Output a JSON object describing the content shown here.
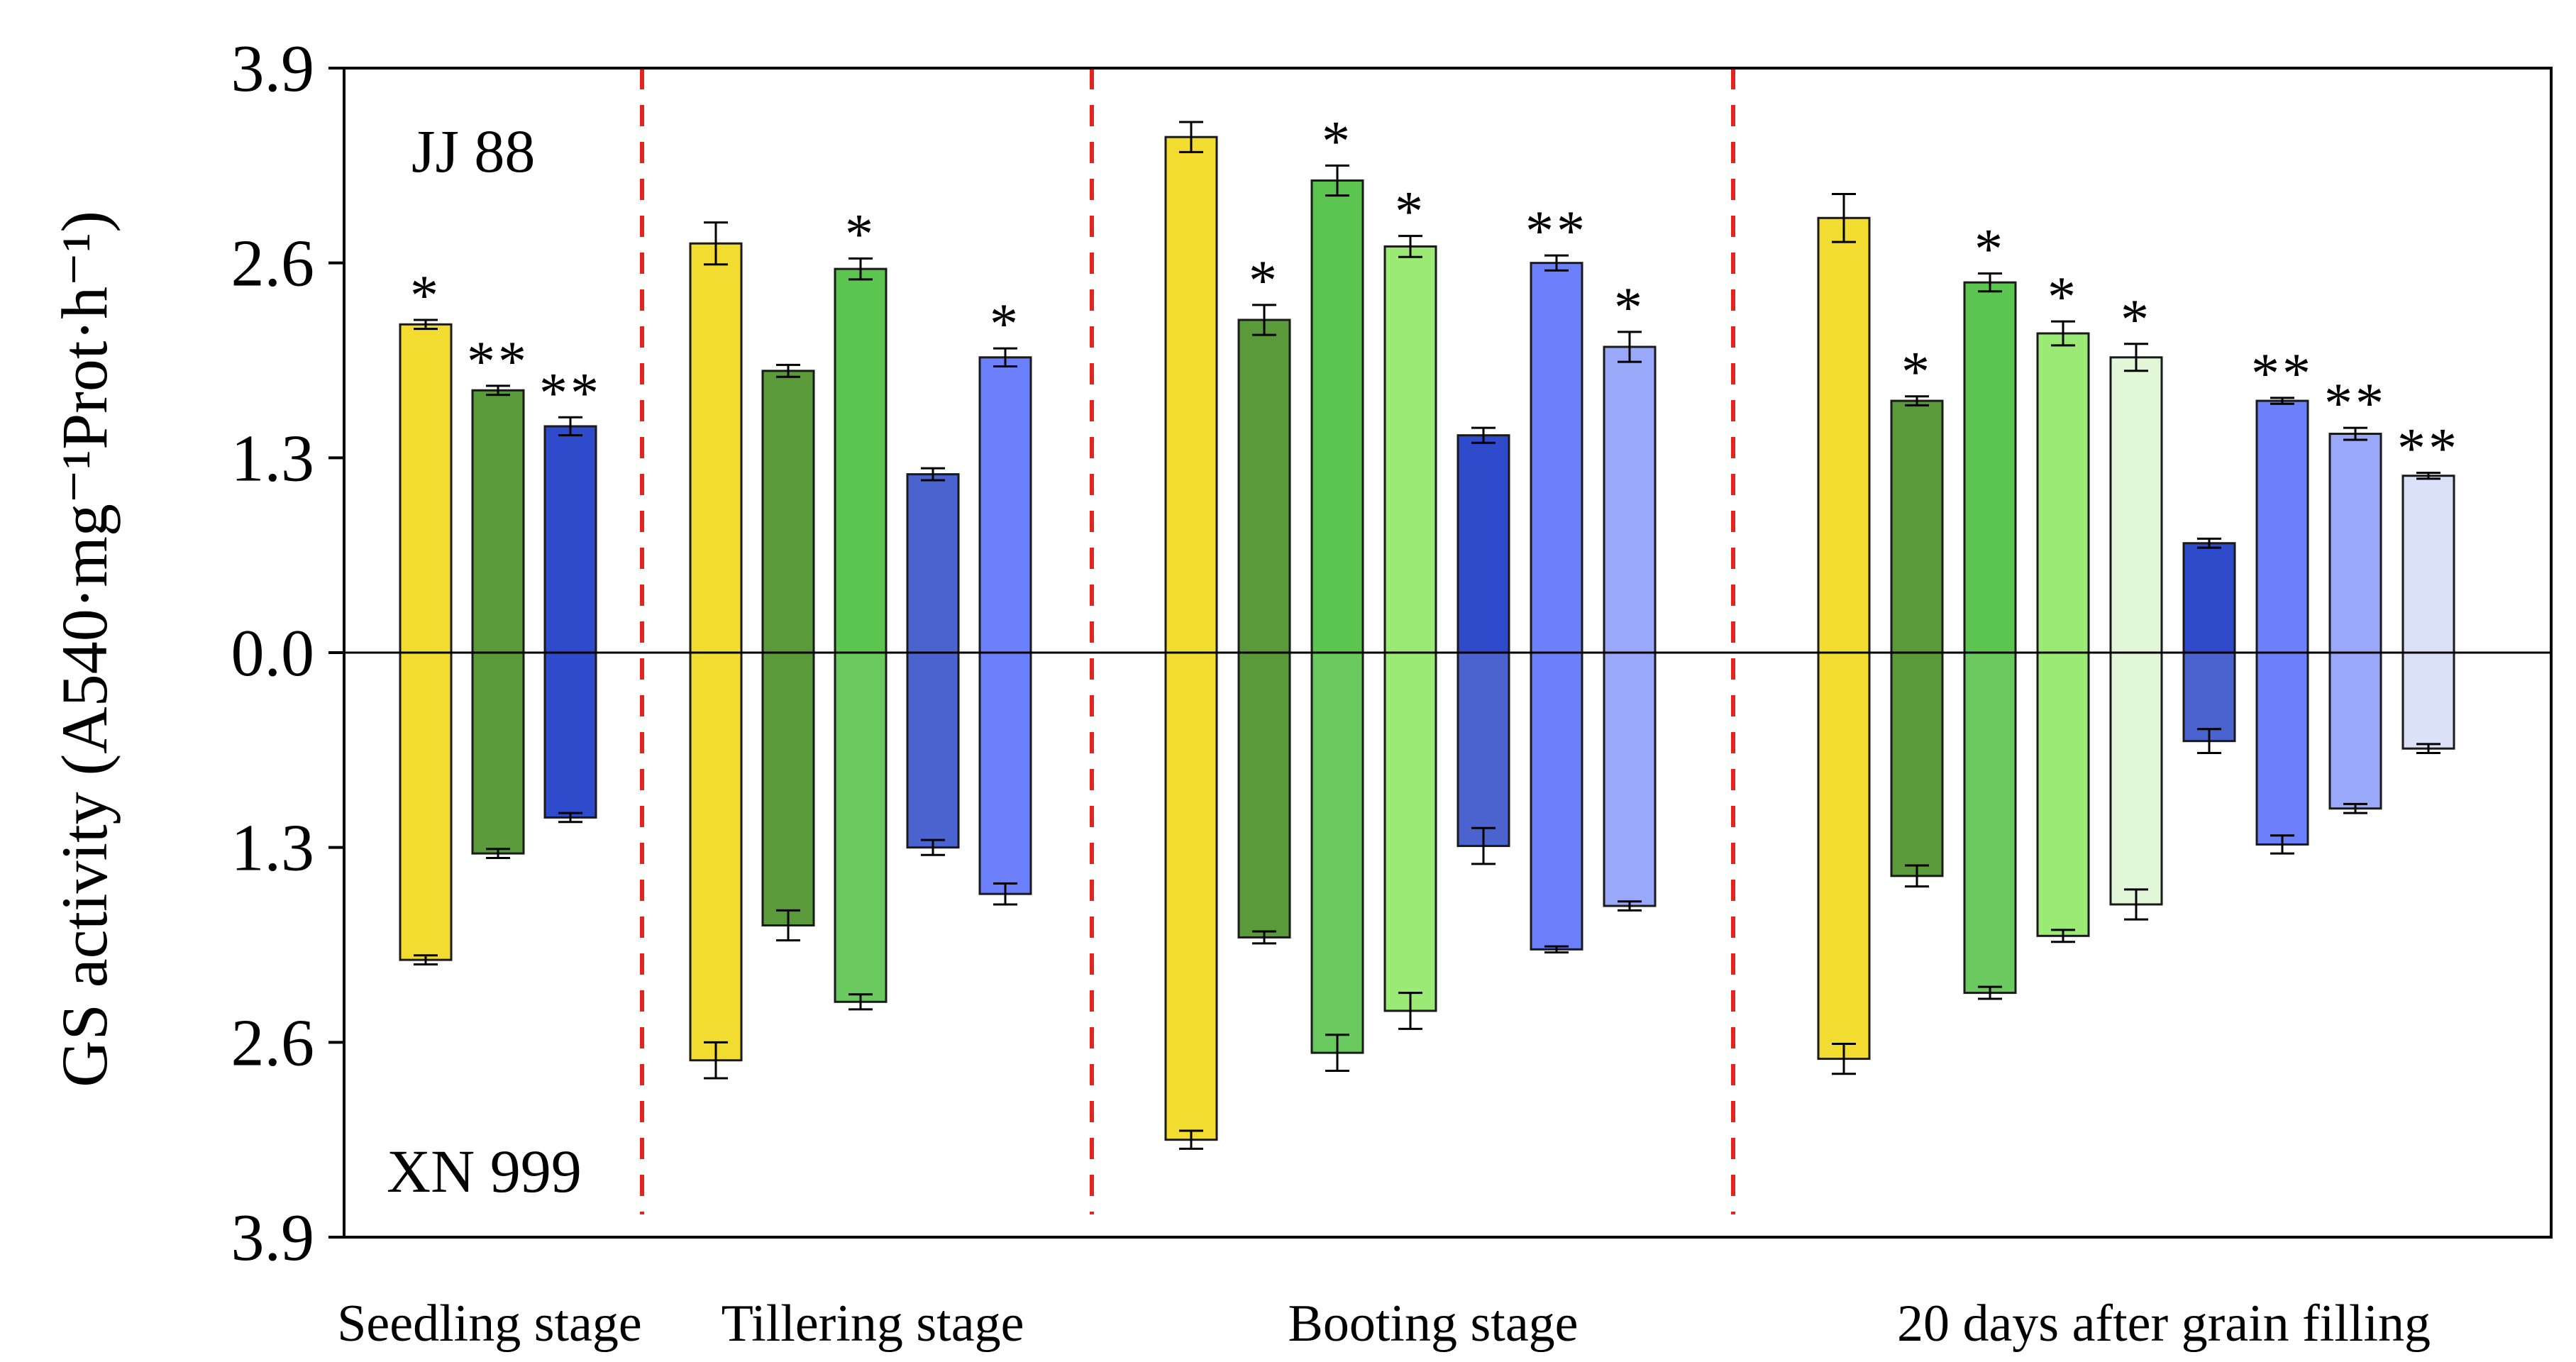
{
  "chart_data": {
    "type": "bar",
    "subtype": "diverging",
    "ylabel": "GS activity (A540·mg⁻¹Prot·h⁻¹)",
    "ylim": [
      -3.9,
      3.9
    ],
    "yticks": [
      {
        "value": 3.9,
        "label": "3.9"
      },
      {
        "value": 2.6,
        "label": "2.6"
      },
      {
        "value": 1.3,
        "label": "1.3"
      },
      {
        "value": 0.0,
        "label": "0.0"
      },
      {
        "value": -1.3,
        "label": "1.3"
      },
      {
        "value": -2.6,
        "label": "2.6"
      },
      {
        "value": -3.9,
        "label": "3.9"
      }
    ],
    "top_label": "JJ 88",
    "bottom_label": "XN 999",
    "colors": {
      "yellow": "#F2DC30",
      "green_dark": "#5A9A3A",
      "green_mid": "#5CC550",
      "green_light": "#9BEA75",
      "green_pale": "#E2F7D7",
      "blue_dark": "#2E4BCC",
      "blue_mid": "#4A63CE",
      "blue_bright": "#6B80FA",
      "blue_light": "#9AA8FA",
      "blue_pale": "#DCE1FA",
      "separator": "#E3241F"
    },
    "stages": [
      {
        "name": "Seedling stage",
        "bars": [
          {
            "top": 2.19,
            "top_err": 0.03,
            "top_sig": "*",
            "bottom": 2.05,
            "bottom_err": 0.03,
            "bottom_sig": "",
            "color_top": "#F2DC30",
            "color_bottom": "#F2DC30"
          },
          {
            "top": 1.75,
            "top_err": 0.03,
            "top_sig": "**",
            "bottom": 1.34,
            "bottom_err": 0.03,
            "bottom_sig": "",
            "color_top": "#5A9A3A",
            "color_bottom": "#5A9A3A"
          },
          {
            "top": 1.51,
            "top_err": 0.06,
            "top_sig": "**",
            "bottom": 1.1,
            "bottom_err": 0.03,
            "bottom_sig": "",
            "color_top": "#2E4BCC",
            "color_bottom": "#2E4BCC"
          }
        ]
      },
      {
        "name": "Tillering stage",
        "bars": [
          {
            "top": 2.73,
            "top_err": 0.14,
            "top_sig": "",
            "bottom": 2.72,
            "bottom_err": 0.12,
            "bottom_sig": "",
            "color_top": "#F2DC30",
            "color_bottom": "#F2DC30"
          },
          {
            "top": 1.88,
            "top_err": 0.04,
            "top_sig": "",
            "bottom": 1.82,
            "bottom_err": 0.1,
            "bottom_sig": "",
            "color_top": "#5A9A3A",
            "color_bottom": "#5A9A3A"
          },
          {
            "top": 2.56,
            "top_err": 0.07,
            "top_sig": "*",
            "bottom": 2.33,
            "bottom_err": 0.05,
            "bottom_sig": "",
            "color_top": "#5CC550",
            "color_bottom": "#6ACA60"
          },
          {
            "top": 1.19,
            "top_err": 0.04,
            "top_sig": "",
            "bottom": 1.3,
            "bottom_err": 0.05,
            "bottom_sig": "",
            "color_top": "#4A63CE",
            "color_bottom": "#4A63CE"
          },
          {
            "top": 1.97,
            "top_err": 0.06,
            "top_sig": "*",
            "bottom": 1.61,
            "bottom_err": 0.07,
            "bottom_sig": "",
            "color_top": "#6B80FA",
            "color_bottom": "#6B80FA"
          }
        ]
      },
      {
        "name": "Booting stage",
        "bars": [
          {
            "top": 3.44,
            "top_err": 0.1,
            "top_sig": "",
            "bottom": 3.25,
            "bottom_err": 0.06,
            "bottom_sig": "",
            "color_top": "#F2DC30",
            "color_bottom": "#F2DC30"
          },
          {
            "top": 2.22,
            "top_err": 0.1,
            "top_sig": "*",
            "bottom": 1.9,
            "bottom_err": 0.04,
            "bottom_sig": "",
            "color_top": "#5A9A3A",
            "color_bottom": "#5A9A3A"
          },
          {
            "top": 3.15,
            "top_err": 0.1,
            "top_sig": "*",
            "bottom": 2.67,
            "bottom_err": 0.12,
            "bottom_sig": "",
            "color_top": "#5CC550",
            "color_bottom": "#6ACA60"
          },
          {
            "top": 2.71,
            "top_err": 0.07,
            "top_sig": "*",
            "bottom": 2.39,
            "bottom_err": 0.12,
            "bottom_sig": "",
            "color_top": "#9BEA75",
            "color_bottom": "#9BEA75"
          },
          {
            "top": 1.45,
            "top_err": 0.05,
            "top_sig": "",
            "bottom": 1.29,
            "bottom_err": 0.12,
            "bottom_sig": "",
            "color_top": "#2E4BCC",
            "color_bottom": "#4A63CE"
          },
          {
            "top": 2.6,
            "top_err": 0.05,
            "top_sig": "**",
            "bottom": 1.98,
            "bottom_err": 0.02,
            "bottom_sig": "",
            "color_top": "#6B80FA",
            "color_bottom": "#6B80FA"
          },
          {
            "top": 2.04,
            "top_err": 0.1,
            "top_sig": "*",
            "bottom": 1.69,
            "bottom_err": 0.03,
            "bottom_sig": "",
            "color_top": "#9AA8FA",
            "color_bottom": "#9AA8FA"
          }
        ]
      },
      {
        "name": "20 days after grain filling",
        "bars": [
          {
            "top": 2.9,
            "top_err": 0.16,
            "top_sig": "",
            "bottom": 2.71,
            "bottom_err": 0.1,
            "bottom_sig": "",
            "color_top": "#F2DC30",
            "color_bottom": "#F2DC30"
          },
          {
            "top": 1.68,
            "top_err": 0.03,
            "top_sig": "*",
            "bottom": 1.49,
            "bottom_err": 0.07,
            "bottom_sig": "",
            "color_top": "#5A9A3A",
            "color_bottom": "#5A9A3A"
          },
          {
            "top": 2.47,
            "top_err": 0.06,
            "top_sig": "*",
            "bottom": 2.27,
            "bottom_err": 0.04,
            "bottom_sig": "",
            "color_top": "#5CC550",
            "color_bottom": "#6ACA60"
          },
          {
            "top": 2.13,
            "top_err": 0.08,
            "top_sig": "*",
            "bottom": 1.89,
            "bottom_err": 0.04,
            "bottom_sig": "",
            "color_top": "#9BEA75",
            "color_bottom": "#9BEA75"
          },
          {
            "top": 1.97,
            "top_err": 0.09,
            "top_sig": "*",
            "bottom": 1.68,
            "bottom_err": 0.1,
            "bottom_sig": "",
            "color_top": "#E2F7D7",
            "color_bottom": "#E2F7D7"
          },
          {
            "top": 0.73,
            "top_err": 0.03,
            "top_sig": "",
            "bottom": 0.59,
            "bottom_err": 0.08,
            "bottom_sig": "",
            "color_top": "#2E4BCC",
            "color_bottom": "#4A63CE"
          },
          {
            "top": 1.68,
            "top_err": 0.02,
            "top_sig": "**",
            "bottom": 1.28,
            "bottom_err": 0.06,
            "bottom_sig": "",
            "color_top": "#6B80FA",
            "color_bottom": "#6B80FA"
          },
          {
            "top": 1.46,
            "top_err": 0.04,
            "top_sig": "**",
            "bottom": 1.04,
            "bottom_err": 0.03,
            "bottom_sig": "",
            "color_top": "#9AA8FA",
            "color_bottom": "#9AA8FA"
          },
          {
            "top": 1.18,
            "top_err": 0.02,
            "top_sig": "**",
            "bottom": 0.64,
            "bottom_err": 0.03,
            "bottom_sig": "",
            "color_top": "#DCE1FA",
            "color_bottom": "#DCE1FA"
          }
        ]
      }
    ]
  }
}
